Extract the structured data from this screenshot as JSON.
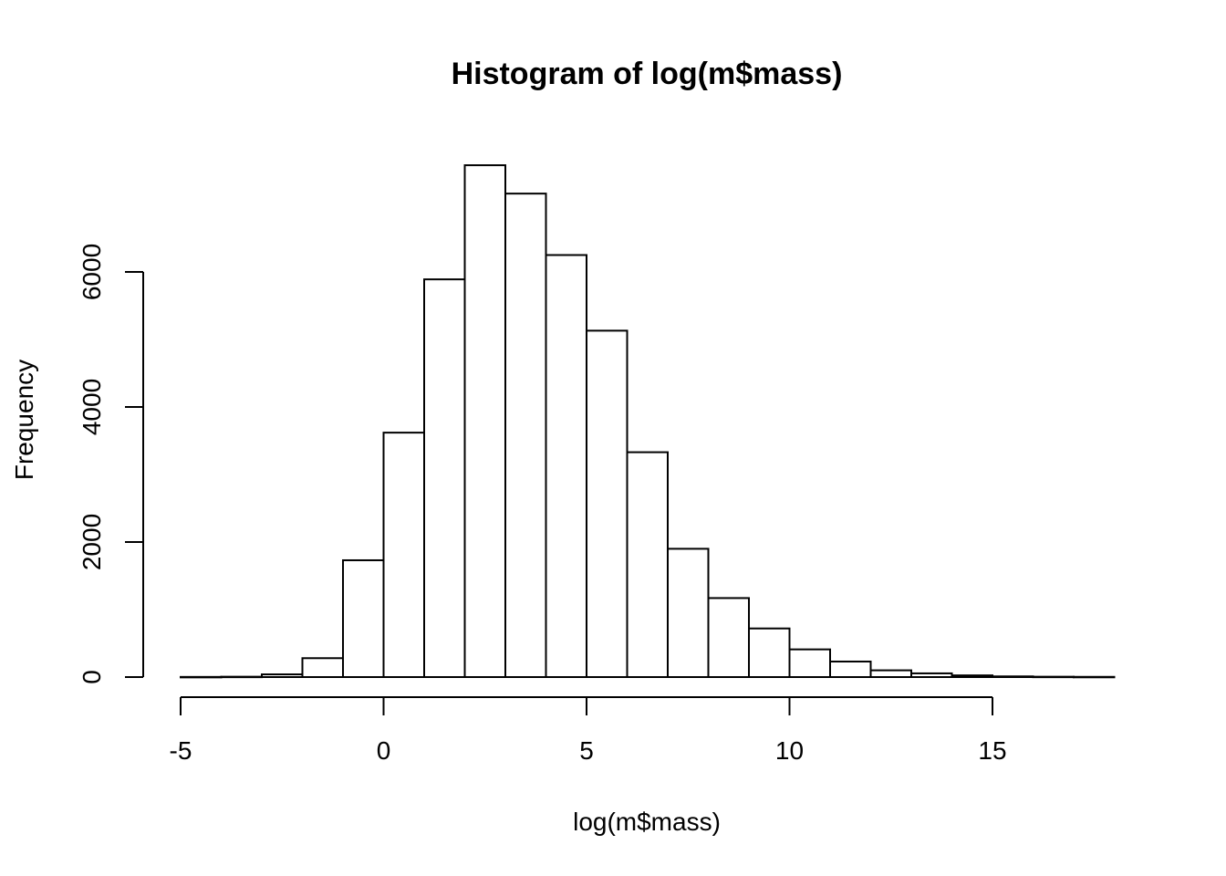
{
  "chart_data": {
    "type": "bar",
    "title": "Histogram of log(m$mass)",
    "xlabel": "log(m$mass)",
    "ylabel": "Frequency",
    "bin_edges": [
      -5,
      -4,
      -3,
      -2,
      -1,
      0,
      1,
      2,
      3,
      4,
      5,
      6,
      7,
      8,
      9,
      10,
      11,
      12,
      13,
      14,
      15,
      16,
      17,
      18
    ],
    "values": [
      2,
      5,
      40,
      280,
      1730,
      3620,
      5890,
      7580,
      7160,
      6250,
      5130,
      3330,
      1900,
      1170,
      720,
      410,
      230,
      100,
      55,
      25,
      10,
      5,
      3
    ],
    "xlim": [
      -5,
      18
    ],
    "ylim": [
      0,
      7600
    ],
    "x_ticks": [
      -5,
      0,
      5,
      10,
      15
    ],
    "x_tick_labels": [
      "-5",
      "0",
      "5",
      "10",
      "15"
    ],
    "y_ticks": [
      0,
      2000,
      4000,
      6000
    ],
    "y_tick_labels": [
      "0",
      "2000",
      "4000",
      "6000"
    ],
    "grid": false,
    "colors": {
      "bar_fill": "#ffffff",
      "bar_stroke": "#000000"
    }
  }
}
